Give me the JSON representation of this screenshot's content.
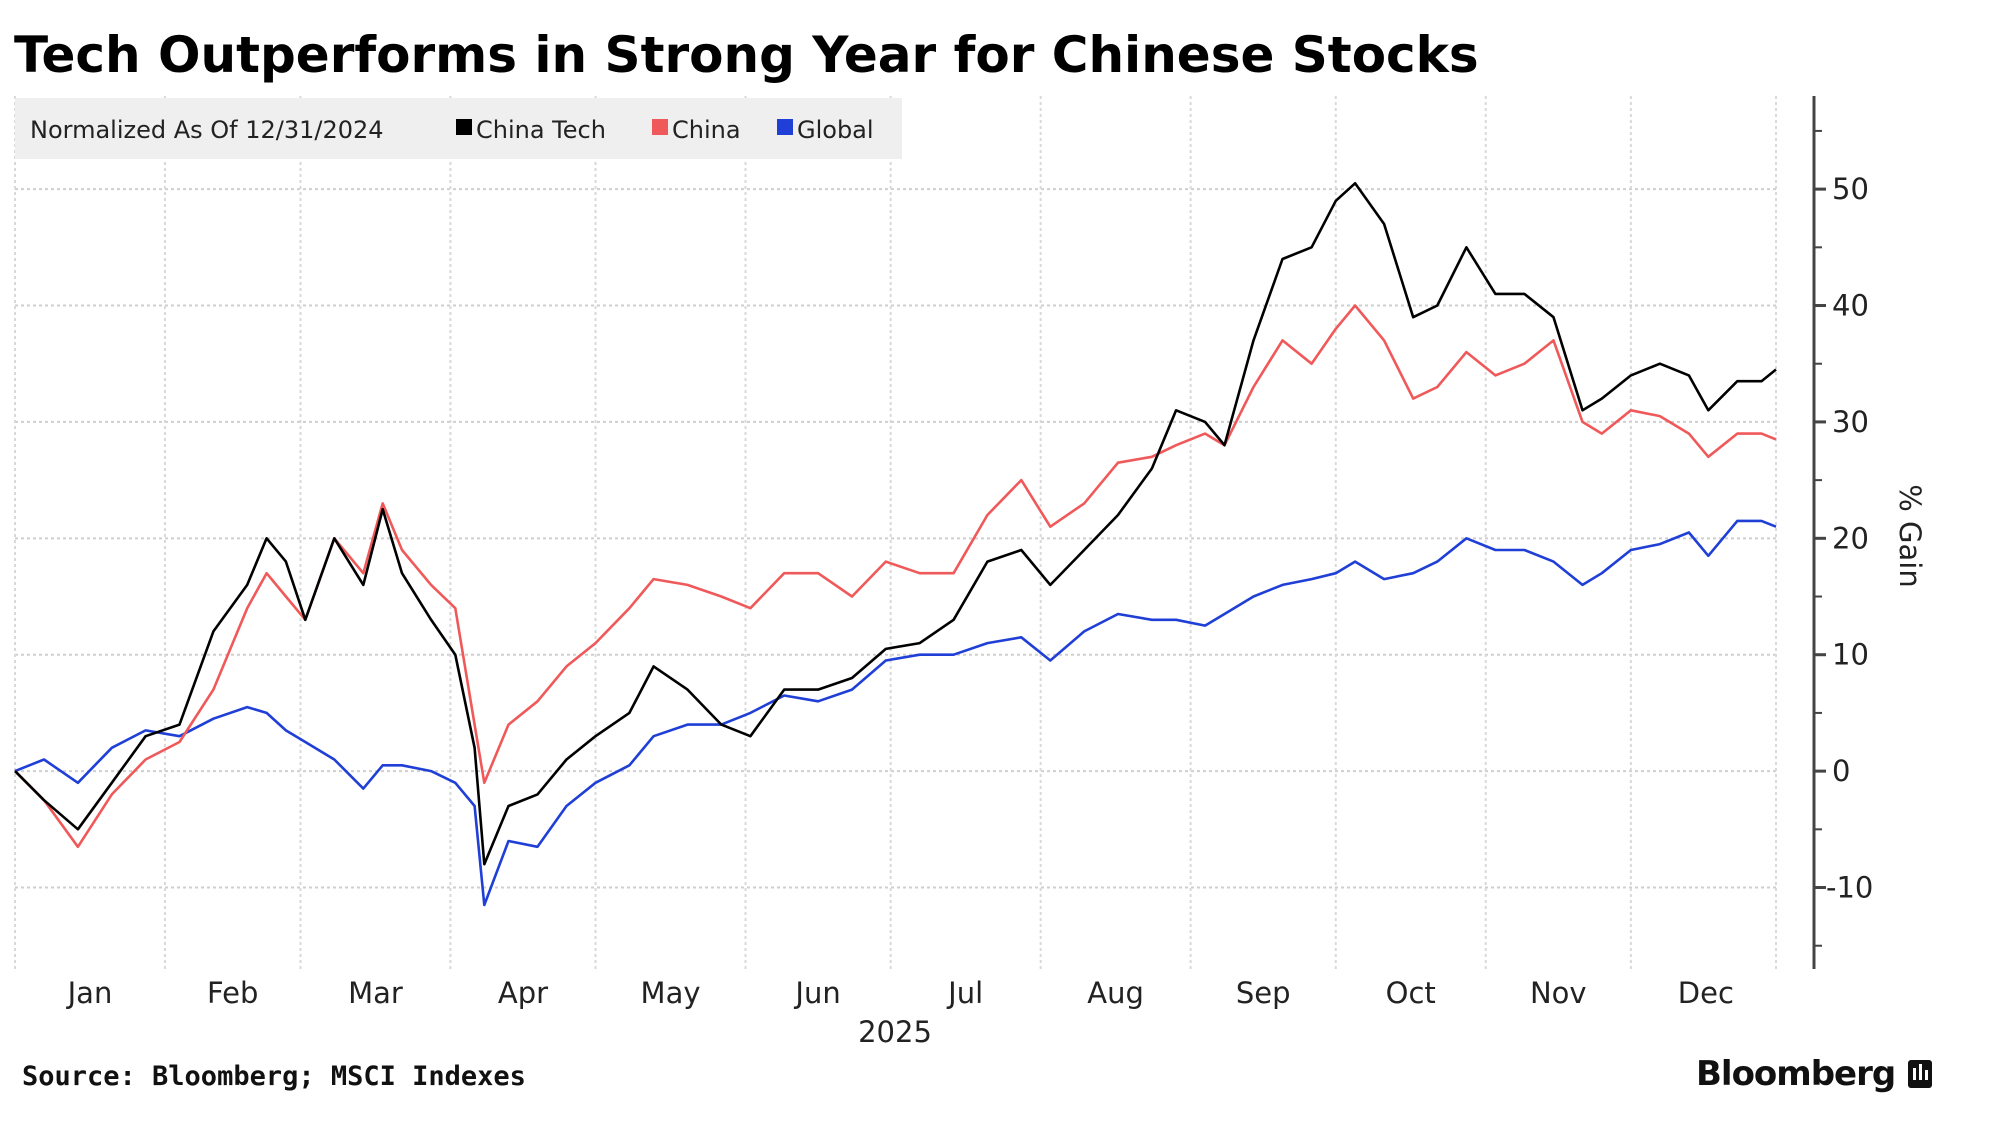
{
  "chart_data": {
    "type": "line",
    "title": "Tech Outperforms in Strong Year for Chinese Stocks",
    "subtitle": "Normalized As Of 12/31/2024",
    "ylabel": "% Gain",
    "xlabel": "2025",
    "ylim": [
      -17,
      58
    ],
    "yticks": [
      50,
      40,
      30,
      20,
      10,
      0,
      -10
    ],
    "ytick_labels": [
      "50",
      "40",
      "30",
      "20",
      "10",
      "0",
      "-10"
    ],
    "xticks": [
      "Jan",
      "Feb",
      "Mar",
      "Apr",
      "May",
      "Jun",
      "Jul",
      "Aug",
      "Sep",
      "Oct",
      "Nov",
      "Dec"
    ],
    "year_label": "2025",
    "grid": true,
    "legend_placement": "top-left",
    "x": [
      "2025-01-01",
      "2025-01-07",
      "2025-01-14",
      "2025-01-21",
      "2025-01-28",
      "2025-02-04",
      "2025-02-11",
      "2025-02-18",
      "2025-02-22",
      "2025-02-26",
      "2025-03-02",
      "2025-03-08",
      "2025-03-14",
      "2025-03-18",
      "2025-03-22",
      "2025-03-28",
      "2025-04-02",
      "2025-04-06",
      "2025-04-08",
      "2025-04-13",
      "2025-04-19",
      "2025-04-25",
      "2025-05-01",
      "2025-05-08",
      "2025-05-13",
      "2025-05-20",
      "2025-05-27",
      "2025-06-02",
      "2025-06-09",
      "2025-06-16",
      "2025-06-23",
      "2025-06-30",
      "2025-07-07",
      "2025-07-14",
      "2025-07-21",
      "2025-07-28",
      "2025-08-03",
      "2025-08-10",
      "2025-08-17",
      "2025-08-24",
      "2025-08-29",
      "2025-09-04",
      "2025-09-08",
      "2025-09-14",
      "2025-09-20",
      "2025-09-26",
      "2025-10-01",
      "2025-10-05",
      "2025-10-11",
      "2025-10-17",
      "2025-10-22",
      "2025-10-28",
      "2025-11-03",
      "2025-11-09",
      "2025-11-15",
      "2025-11-21",
      "2025-11-25",
      "2025-12-01",
      "2025-12-07",
      "2025-12-13",
      "2025-12-17",
      "2025-12-23",
      "2025-12-28",
      "2025-12-31"
    ],
    "series": [
      {
        "name": "China Tech",
        "color": "#000000",
        "values": [
          0,
          -2.5,
          -5,
          -1,
          3,
          4,
          12,
          16,
          20,
          18,
          13,
          20,
          16,
          22.5,
          17,
          13,
          10,
          2,
          -8,
          -3,
          -2,
          1,
          3,
          5,
          9,
          7,
          4,
          3,
          7,
          7,
          8,
          10.5,
          11,
          13,
          18,
          19,
          16,
          19,
          22,
          26,
          31,
          30,
          28,
          37,
          44,
          45,
          49,
          50.5,
          47,
          39,
          40,
          45,
          41,
          41,
          39,
          31,
          32,
          34,
          35,
          34,
          31,
          33.5,
          33.5,
          34.5
        ]
      },
      {
        "name": "China",
        "color": "#f0595a",
        "values": [
          0,
          -2.5,
          -6.5,
          -2,
          1,
          2.5,
          7,
          14,
          17,
          15,
          13,
          20,
          17,
          23,
          19,
          16,
          14,
          4,
          -1,
          4,
          6,
          9,
          11,
          14,
          16.5,
          16,
          15,
          14,
          17,
          17,
          15,
          18,
          17,
          17,
          22,
          25,
          21,
          23,
          26.5,
          27,
          28,
          29,
          28,
          33,
          37,
          35,
          38,
          40,
          37,
          32,
          33,
          36,
          34,
          35,
          37,
          30,
          29,
          31,
          30.5,
          29,
          27,
          29,
          29,
          28.5
        ]
      },
      {
        "name": "Global",
        "color": "#1f3fd6",
        "values": [
          0,
          1,
          -1,
          2,
          3.5,
          3,
          4.5,
          5.5,
          5,
          3.5,
          2.5,
          1,
          -1.5,
          0.5,
          0.5,
          0,
          -1,
          -3,
          -11.5,
          -6,
          -6.5,
          -3,
          -1,
          0.5,
          3,
          4,
          4,
          5,
          6.5,
          6,
          7,
          9.5,
          10,
          10,
          11,
          11.5,
          9.5,
          12,
          13.5,
          13,
          13,
          12.5,
          13.5,
          15,
          16,
          16.5,
          17,
          18,
          16.5,
          17,
          18,
          20,
          19,
          19,
          18,
          16,
          17,
          19,
          19.5,
          20.5,
          18.5,
          21.5,
          21.5,
          21
        ]
      }
    ]
  },
  "footer": {
    "source": "Source: Bloomberg; MSCI Indexes",
    "brand": "Bloomberg"
  }
}
